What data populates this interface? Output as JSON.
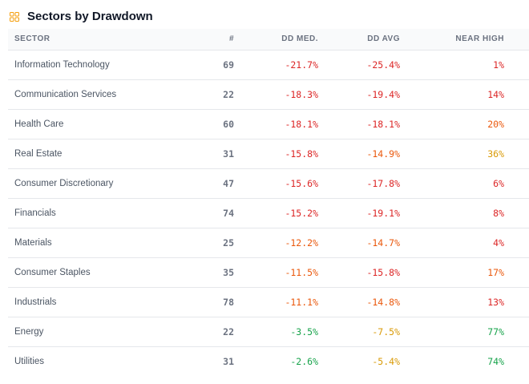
{
  "header": {
    "title": "Sectors by Drawdown",
    "icon": "grid-icon"
  },
  "table": {
    "columns": [
      "SECTOR",
      "#",
      "DD MED.",
      "DD AVG",
      "NEAR HIGH"
    ],
    "rows": [
      {
        "sector": "Information Technology",
        "count": "69",
        "dd_med": "-21.7%",
        "dd_avg": "-25.4%",
        "near_high": "1%",
        "colors": {
          "dd_med": "#dc2626",
          "dd_avg": "#dc2626",
          "near_high": "#dc2626"
        }
      },
      {
        "sector": "Communication Services",
        "count": "22",
        "dd_med": "-18.3%",
        "dd_avg": "-19.4%",
        "near_high": "14%",
        "colors": {
          "dd_med": "#dc2626",
          "dd_avg": "#dc2626",
          "near_high": "#dc2626"
        }
      },
      {
        "sector": "Health Care",
        "count": "60",
        "dd_med": "-18.1%",
        "dd_avg": "-18.1%",
        "near_high": "20%",
        "colors": {
          "dd_med": "#dc2626",
          "dd_avg": "#dc2626",
          "near_high": "#ea580c"
        }
      },
      {
        "sector": "Real Estate",
        "count": "31",
        "dd_med": "-15.8%",
        "dd_avg": "-14.9%",
        "near_high": "36%",
        "colors": {
          "dd_med": "#dc2626",
          "dd_avg": "#ea580c",
          "near_high": "#d99a06"
        }
      },
      {
        "sector": "Consumer Discretionary",
        "count": "47",
        "dd_med": "-15.6%",
        "dd_avg": "-17.8%",
        "near_high": "6%",
        "colors": {
          "dd_med": "#dc2626",
          "dd_avg": "#dc2626",
          "near_high": "#dc2626"
        }
      },
      {
        "sector": "Financials",
        "count": "74",
        "dd_med": "-15.2%",
        "dd_avg": "-19.1%",
        "near_high": "8%",
        "colors": {
          "dd_med": "#dc2626",
          "dd_avg": "#dc2626",
          "near_high": "#dc2626"
        }
      },
      {
        "sector": "Materials",
        "count": "25",
        "dd_med": "-12.2%",
        "dd_avg": "-14.7%",
        "near_high": "4%",
        "colors": {
          "dd_med": "#ea580c",
          "dd_avg": "#ea580c",
          "near_high": "#dc2626"
        }
      },
      {
        "sector": "Consumer Staples",
        "count": "35",
        "dd_med": "-11.5%",
        "dd_avg": "-15.8%",
        "near_high": "17%",
        "colors": {
          "dd_med": "#ea580c",
          "dd_avg": "#dc2626",
          "near_high": "#ea580c"
        }
      },
      {
        "sector": "Industrials",
        "count": "78",
        "dd_med": "-11.1%",
        "dd_avg": "-14.8%",
        "near_high": "13%",
        "colors": {
          "dd_med": "#ea580c",
          "dd_avg": "#ea580c",
          "near_high": "#dc2626"
        }
      },
      {
        "sector": "Energy",
        "count": "22",
        "dd_med": "-3.5%",
        "dd_avg": "-7.5%",
        "near_high": "77%",
        "colors": {
          "dd_med": "#16a34a",
          "dd_avg": "#d99a06",
          "near_high": "#16a34a"
        }
      },
      {
        "sector": "Utilities",
        "count": "31",
        "dd_med": "-2.6%",
        "dd_avg": "-5.4%",
        "near_high": "74%",
        "colors": {
          "dd_med": "#16a34a",
          "dd_avg": "#d99a06",
          "near_high": "#16a34a"
        }
      }
    ]
  }
}
